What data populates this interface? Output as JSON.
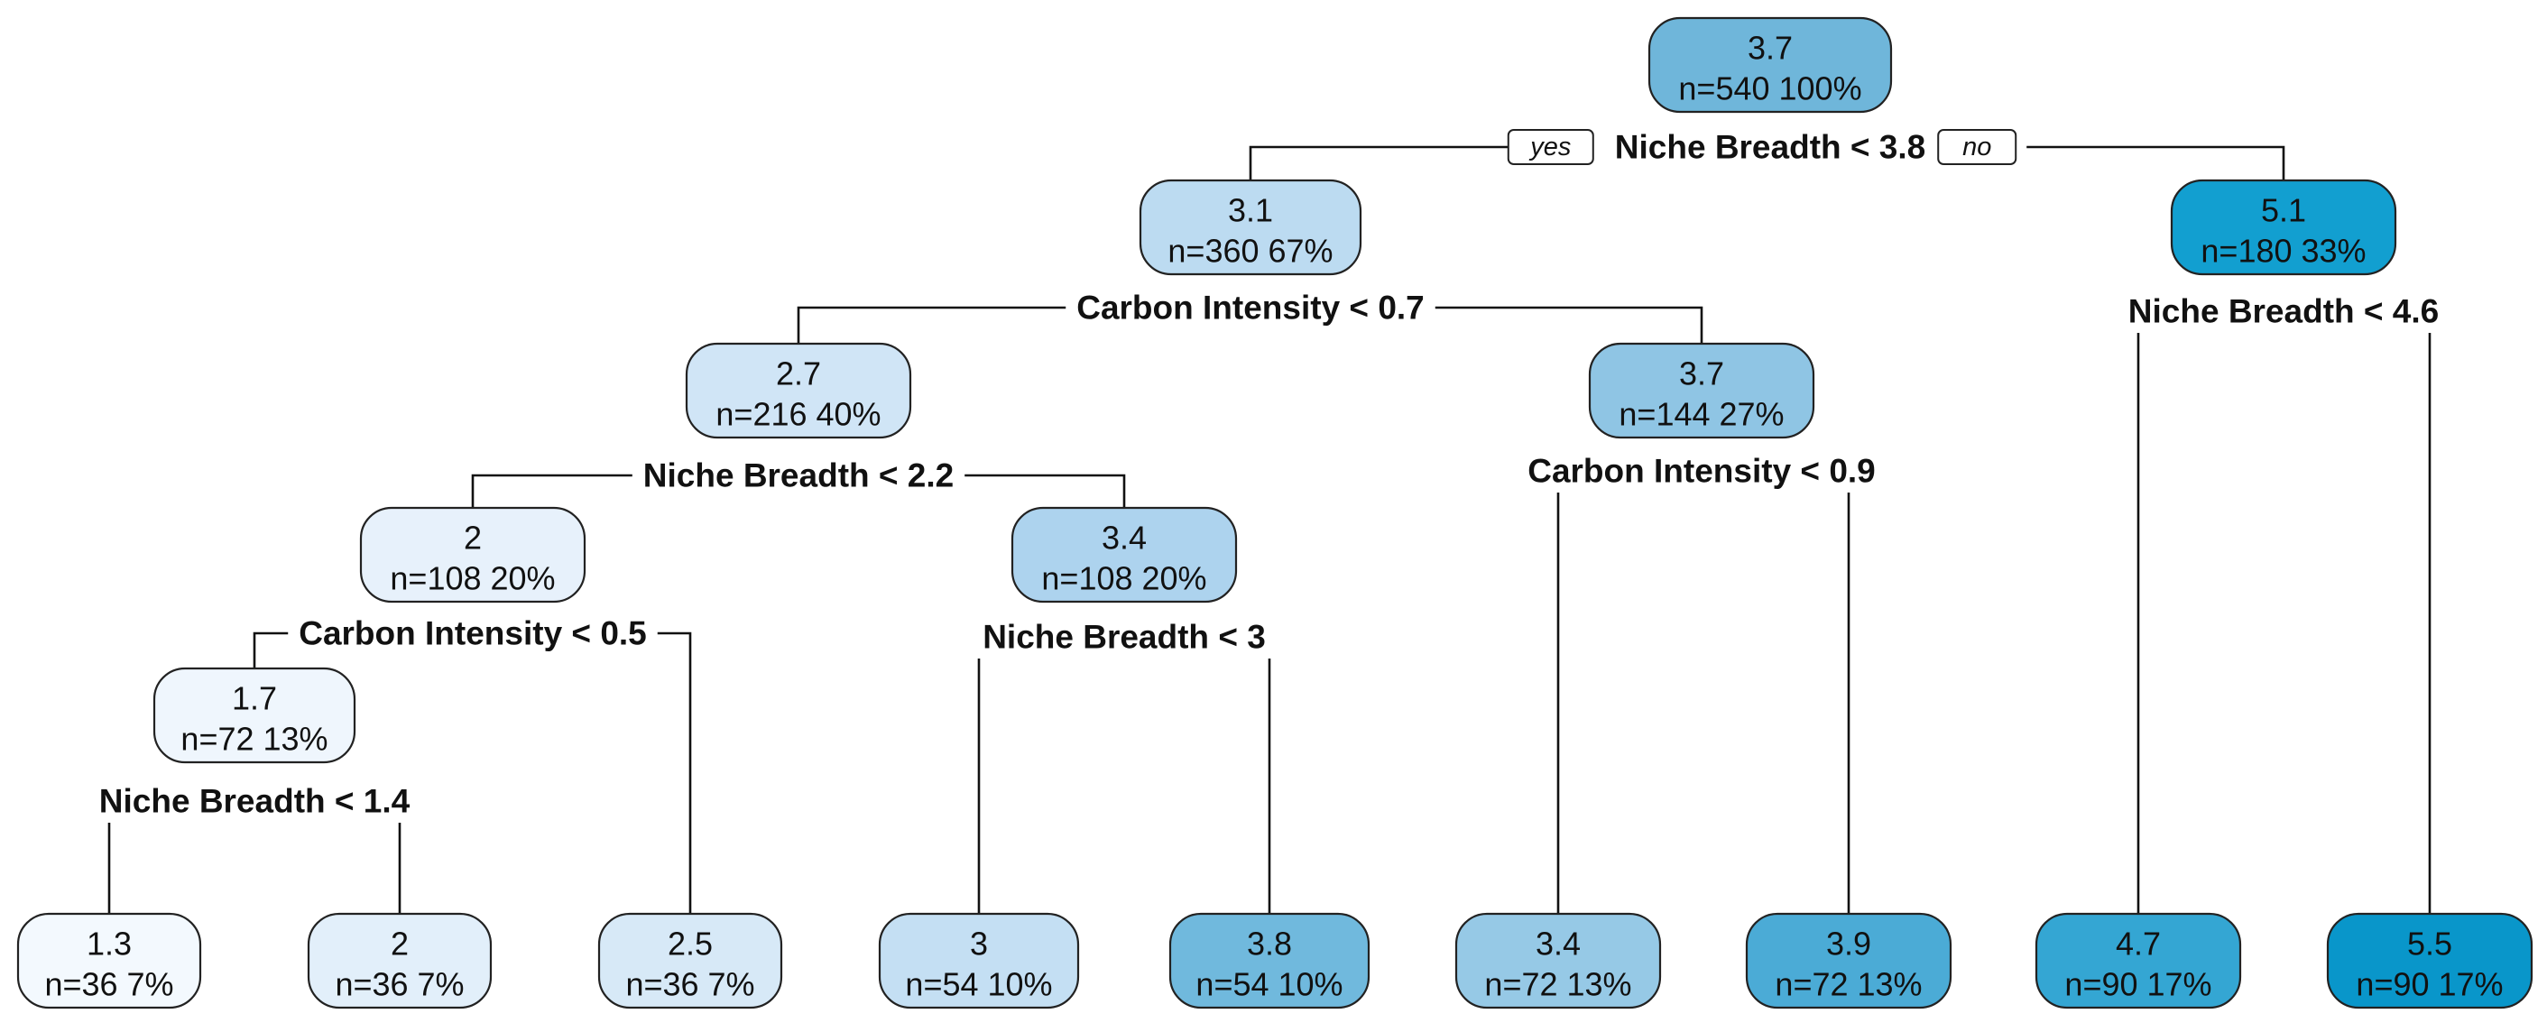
{
  "tree": {
    "nodes": [
      {
        "id": "root",
        "value": "3.7",
        "count": "n=540  100%",
        "fill": "#6FB6DA"
      },
      {
        "id": "n-l",
        "value": "3.1",
        "count": "n=360  67%",
        "fill": "#BCDBF1"
      },
      {
        "id": "n-r",
        "value": "5.1",
        "count": "n=180  33%",
        "fill": "#129FD0"
      },
      {
        "id": "n-ll",
        "value": "2.7",
        "count": "n=216  40%",
        "fill": "#D0E5F6"
      },
      {
        "id": "n-lr",
        "value": "3.7",
        "count": "n=144  27%",
        "fill": "#8FC5E4"
      },
      {
        "id": "n-lll",
        "value": "2",
        "count": "n=108  20%",
        "fill": "#E7F1FB"
      },
      {
        "id": "n-llr",
        "value": "3.4",
        "count": "n=108  20%",
        "fill": "#ADD3EE"
      },
      {
        "id": "n-llll",
        "value": "1.7",
        "count": "n=72  13%",
        "fill": "#EFF6FD"
      },
      {
        "id": "leaf-1",
        "value": "1.3",
        "count": "n=36  7%",
        "fill": "#F3F9FE"
      },
      {
        "id": "leaf-2",
        "value": "2",
        "count": "n=36  7%",
        "fill": "#E2EFFA"
      },
      {
        "id": "leaf-3",
        "value": "2.5",
        "count": "n=36  7%",
        "fill": "#D7E9F7"
      },
      {
        "id": "leaf-4",
        "value": "3",
        "count": "n=54  10%",
        "fill": "#C4DFF3"
      },
      {
        "id": "leaf-5",
        "value": "3.8",
        "count": "n=54  10%",
        "fill": "#70B9DD"
      },
      {
        "id": "leaf-6",
        "value": "3.4",
        "count": "n=72  13%",
        "fill": "#96C9E6"
      },
      {
        "id": "leaf-7",
        "value": "3.9",
        "count": "n=72  13%",
        "fill": "#4BABD6"
      },
      {
        "id": "leaf-8",
        "value": "4.7",
        "count": "n=90  17%",
        "fill": "#34A6D3"
      },
      {
        "id": "leaf-9",
        "value": "5.5",
        "count": "n=90  17%",
        "fill": "#0996CA"
      }
    ],
    "splits": [
      {
        "node": "root",
        "label": "Niche Breadth < 3.8"
      },
      {
        "node": "n-l",
        "label": "Carbon Intensity < 0.7"
      },
      {
        "node": "n-r",
        "label": "Niche Breadth < 4.6"
      },
      {
        "node": "n-ll",
        "label": "Niche Breadth < 2.2"
      },
      {
        "node": "n-lr",
        "label": "Carbon Intensity < 0.9"
      },
      {
        "node": "n-lll",
        "label": "Carbon Intensity < 0.5"
      },
      {
        "node": "n-llr",
        "label": "Niche Breadth < 3"
      },
      {
        "node": "n-llll",
        "label": "Niche Breadth < 1.4"
      }
    ],
    "branch_tags": {
      "yes": "yes",
      "no": "no"
    },
    "edge_color": "#111111",
    "node_border_color": "#222222"
  }
}
